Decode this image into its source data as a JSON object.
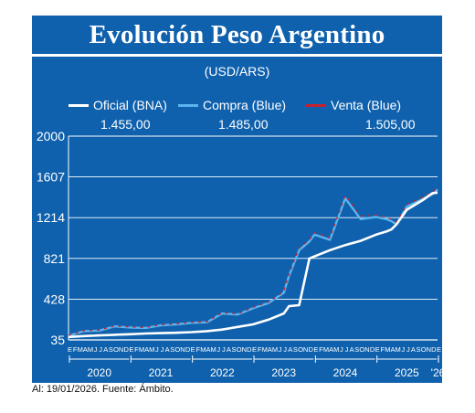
{
  "header": {
    "title": "Evolución Peso Argentino",
    "subtitle": "(USD/ARS)"
  },
  "legend": [
    {
      "name": "Oficial (BNA)",
      "value": "1.455,00",
      "color": "#ffffff"
    },
    {
      "name": "Compra (Blue)",
      "value": "1.485,00",
      "color": "#5ab4ee"
    },
    {
      "name": "Venta (Blue)",
      "value": "1.505,00",
      "color": "#c8202e"
    }
  ],
  "footer": {
    "caption": "Al: 19/01/2026. Fuente: Ámbito."
  },
  "chart_data": {
    "type": "line",
    "title": "Evolución Peso Argentino",
    "subtitle": "(USD/ARS)",
    "ylim": [
      35,
      2000
    ],
    "yticks": [
      35,
      428,
      821,
      1214,
      1607,
      2000
    ],
    "ytick_labels": [
      "35",
      "428",
      "821",
      "1214",
      "1607",
      "2000"
    ],
    "grid": true,
    "legend_position": "top",
    "xlim": [
      "2020-01",
      "2026-01"
    ],
    "month_letters": [
      "E",
      "F",
      "M",
      "A",
      "M",
      "J",
      "J",
      "A",
      "S",
      "O",
      "N",
      "D"
    ],
    "year_labels": [
      "2020",
      "2021",
      "2022",
      "2023",
      "2024",
      "2025",
      "'26"
    ],
    "x": [
      "2020-01",
      "2020-04",
      "2020-07",
      "2020-10",
      "2021-01",
      "2021-04",
      "2021-07",
      "2021-10",
      "2022-01",
      "2022-04",
      "2022-07",
      "2022-10",
      "2023-01",
      "2023-04",
      "2023-07",
      "2023-08",
      "2023-10",
      "2023-12",
      "2024-01",
      "2024-04",
      "2024-07",
      "2024-10",
      "2025-01",
      "2025-03",
      "2025-04",
      "2025-05",
      "2025-07",
      "2025-10",
      "2025-12",
      "2026-01"
    ],
    "series": [
      {
        "name": "Oficial (BNA)",
        "color": "#ffffff",
        "values": [
          63,
          72,
          78,
          84,
          90,
          97,
          100,
          104,
          110,
          120,
          135,
          160,
          185,
          230,
          290,
          360,
          370,
          820,
          840,
          900,
          950,
          990,
          1050,
          1080,
          1100,
          1150,
          1290,
          1380,
          1450,
          1455
        ]
      },
      {
        "name": "Compra (Blue)",
        "color": "#5ab4ee",
        "values": [
          75,
          120,
          125,
          165,
          155,
          150,
          175,
          185,
          200,
          205,
          290,
          280,
          340,
          390,
          490,
          650,
          900,
          985,
          1050,
          1000,
          1400,
          1200,
          1220,
          1200,
          1180,
          1150,
          1320,
          1390,
          1440,
          1485
        ]
      },
      {
        "name": "Venta (Blue)",
        "color": "#c8202e",
        "values": [
          78,
          125,
          130,
          170,
          160,
          155,
          180,
          190,
          205,
          210,
          298,
          285,
          350,
          400,
          500,
          665,
          920,
          1000,
          1070,
          1020,
          1430,
          1230,
          1240,
          1220,
          1200,
          1170,
          1340,
          1410,
          1460,
          1505
        ]
      }
    ]
  }
}
